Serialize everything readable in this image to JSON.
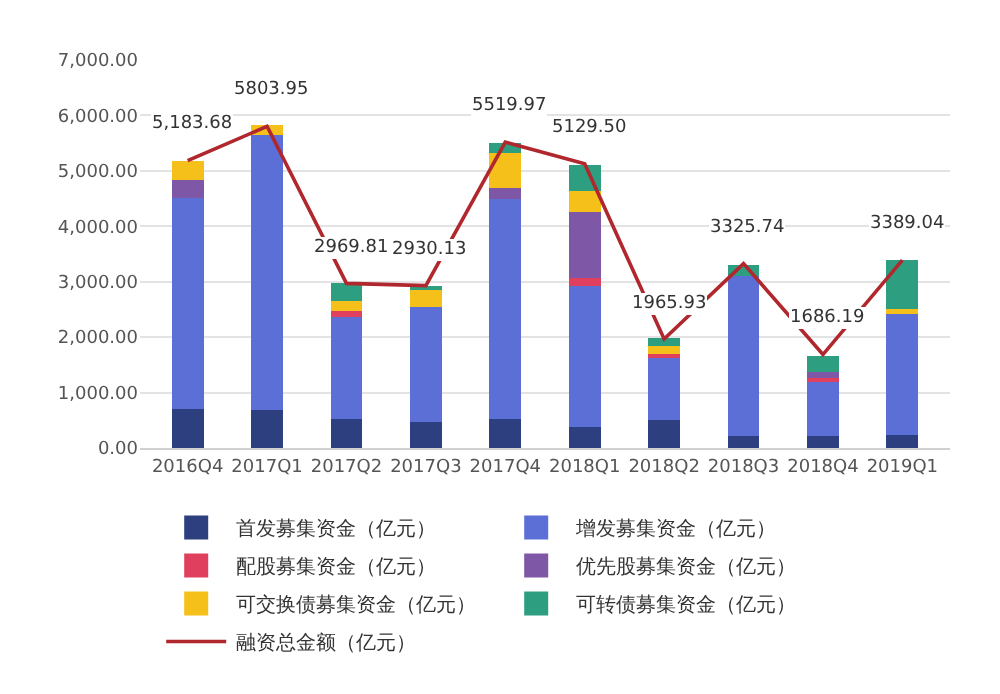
{
  "chart_data": {
    "type": "bar",
    "stacked": true,
    "categories": [
      "2016Q4",
      "2017Q1",
      "2017Q2",
      "2017Q3",
      "2017Q4",
      "2018Q1",
      "2018Q2",
      "2018Q3",
      "2018Q4",
      "2019Q1"
    ],
    "ylim": [
      0,
      7000
    ],
    "yticks": [
      {
        "value": 0,
        "label": "0.00"
      },
      {
        "value": 1000,
        "label": "1,000.00"
      },
      {
        "value": 2000,
        "label": "2,000.00"
      },
      {
        "value": 3000,
        "label": "3,000.00"
      },
      {
        "value": 4000,
        "label": "4,000.00"
      },
      {
        "value": 5000,
        "label": "5,000.00"
      },
      {
        "value": 6000,
        "label": "6,000.00"
      },
      {
        "value": 7000,
        "label": "7,000.00"
      }
    ],
    "grid": "y",
    "legend": "bottom",
    "series": [
      {
        "name": "首发募集资金（亿元）",
        "color": "#2e3f7f",
        "values": [
          710,
          690,
          530,
          470,
          530,
          380,
          510,
          210,
          210,
          240
        ]
      },
      {
        "name": "增发募集资金（亿元）",
        "color": "#5b6fd6",
        "values": [
          3800,
          4950,
          1830,
          2070,
          3960,
          2540,
          1140,
          2900,
          990,
          2210
        ]
      },
      {
        "name": "配股募集资金（亿元）",
        "color": "#e0405e",
        "values": [
          0,
          0,
          120,
          0,
          0,
          150,
          40,
          0,
          60,
          0
        ]
      },
      {
        "name": "优先股募集资金（亿元）",
        "color": "#7e57a6",
        "values": [
          330,
          0,
          0,
          0,
          200,
          1180,
          0,
          0,
          120,
          0
        ]
      },
      {
        "name": "可交换债募集资金（亿元）",
        "color": "#f6c01a",
        "values": [
          340,
          190,
          180,
          330,
          630,
          390,
          150,
          0,
          0,
          60
        ]
      },
      {
        "name": "可转债募集资金（亿元）",
        "color": "#2e9e80",
        "values": [
          0,
          0,
          320,
          60,
          180,
          470,
          140,
          200,
          280,
          890
        ]
      },
      {
        "name": "融资总金额（亿元）",
        "type": "line",
        "color": "#b0272d",
        "marker": "none",
        "values": [
          5183.68,
          5803.95,
          2969.81,
          2930.13,
          5519.97,
          5129.5,
          1965.93,
          3325.74,
          1686.19,
          3389.04
        ],
        "value_labels": [
          "5,183.68",
          "5803.95",
          "2969.81",
          "2930.13",
          "5519.97",
          "5129.50",
          "1965.93",
          "3325.74",
          "1686.19",
          "3389.04"
        ]
      }
    ]
  }
}
